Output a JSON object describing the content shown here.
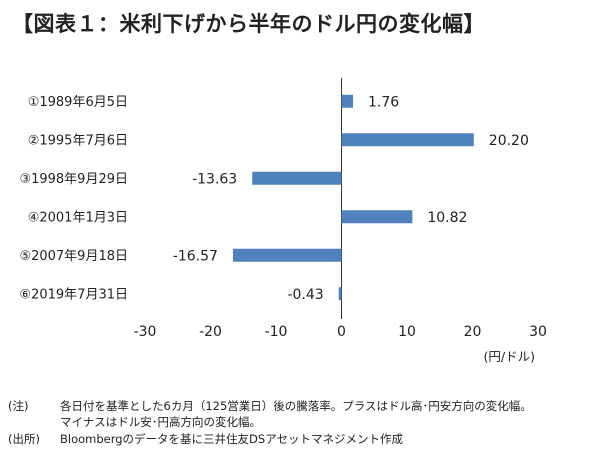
{
  "title": "【図表１：米利下げから半年のドル円の変化幅】",
  "chart_data": {
    "type": "bar",
    "orientation": "horizontal",
    "categories": [
      "①1989年6月5日",
      "②1995年7月6日",
      "③1998年9月29日",
      "④2001年1月3日",
      "⑤2007年9月18日",
      "⑥2019年7月31日"
    ],
    "values": [
      1.76,
      20.2,
      -13.63,
      10.82,
      -16.57,
      -0.43
    ],
    "value_labels": [
      "1.76",
      "20.20",
      "-13.63",
      "10.82",
      "-16.57",
      "-0.43"
    ],
    "xlim": [
      -30,
      30
    ],
    "x_ticks": [
      -30,
      -20,
      -10,
      0,
      10,
      20,
      30
    ],
    "unit_label": "(円/ドル)",
    "grid": false,
    "bar_color": "#4f81bd"
  },
  "notes": {
    "note_label": "(注)",
    "note_line1": "各日付を基準とした6カ月（125営業日）後の騰落率。プラスはドル高･円安方向の変化幅。",
    "note_line2": "マイナスはドル安･円高方向の変化幅。",
    "source_label": "(出所)",
    "source_text": "Bloombergのデータを基に三井住友DSアセットマネジメント作成"
  }
}
